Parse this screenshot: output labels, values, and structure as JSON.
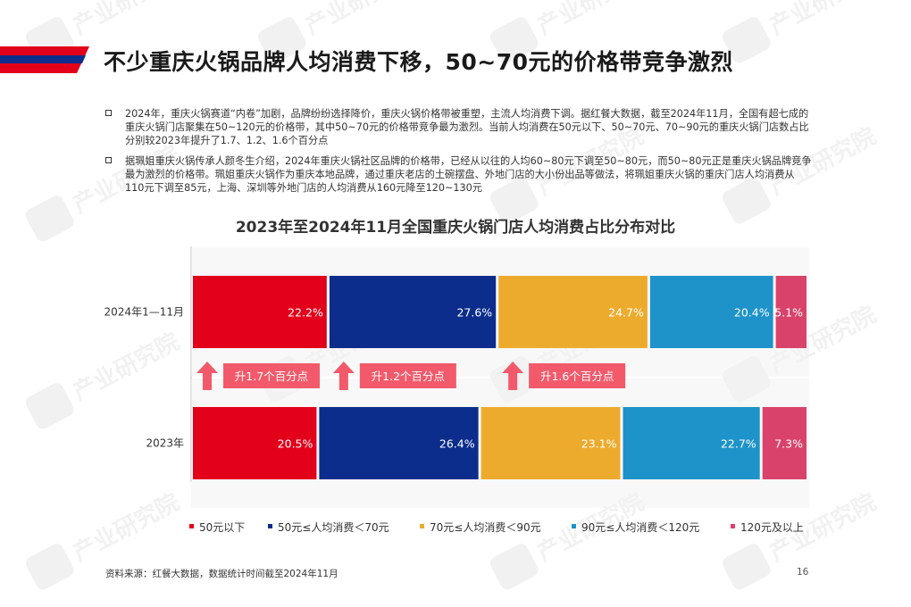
{
  "page": {
    "title": "不少重庆火锅品牌人均消费下移，50~70元的价格带竞争激烈",
    "bullets": [
      "2024年，重庆火锅赛道“内卷”加剧，品牌纷纷选择降价，重庆火锅价格带被重塑，主流人均消费下调。据红餐大数据，截至2024年11月，全国有超七成的重庆火锅门店聚集在50~120元的价格带，其中50~70元的价格带竞争最为激烈。当前人均消费在50元以下、50~70元、70~90元的重庆火锅门店数占比分别较2023年提升了1.7、1.2、1.6个百分点",
      "据珮姐重庆火锅传承人颜冬生介绍，2024年重庆火锅社区品牌的价格带，已经从以往的人均60~80元下调至50~80元，而50~80元正是重庆火锅品牌竞争最为激烈的价格带。珮姐重庆火锅作为重庆本地品牌，通过重庆老店的土碗摆盘、外地门店的大小份出品等做法，将珮姐重庆火锅的重庆门店人均消费从110元下调至85元，上海、深圳等外地门店的人均消费从160元降至120~130元"
    ],
    "source": "资料来源：红餐大数据，数据统计时间截至2024年11月",
    "page_number": "16",
    "watermark": "产业研究院",
    "watermark_logo": "红餐"
  },
  "chart_data": {
    "type": "bar",
    "orientation": "horizontal",
    "stacked": true,
    "normalized": true,
    "title": "2023年至2024年11月全国重庆火锅门店人均消费占比分布对比",
    "categories": [
      "2024年1—11月",
      "2023年"
    ],
    "series": [
      {
        "name": "50元以下",
        "color": "#e3001b",
        "values": [
          22.2,
          20.5
        ],
        "labels": [
          "22.2%",
          "20.5%"
        ]
      },
      {
        "name": "50元≤人均消费＜70元",
        "color": "#0c2d8c",
        "values": [
          27.6,
          26.4
        ],
        "labels": [
          "27.6%",
          "26.4%"
        ]
      },
      {
        "name": "70元≤人均消费＜90元",
        "color": "#edab2e",
        "values": [
          24.7,
          23.1
        ],
        "labels": [
          "24.7%",
          "23.1%"
        ]
      },
      {
        "name": "90元≤人均消费＜120元",
        "color": "#1d93c9",
        "values": [
          20.4,
          22.7
        ],
        "labels": [
          "20.4%",
          "22.7%"
        ]
      },
      {
        "name": "120元及以上",
        "color": "#d9436b",
        "values": [
          5.1,
          7.3
        ],
        "labels": [
          "5.1%",
          "7.3%"
        ]
      }
    ],
    "annotations": [
      "升1.7个百分点",
      "升1.2个百分点",
      "升1.6个百分点"
    ],
    "legend": "bottom",
    "grid": false,
    "arrow_color": "#f25a6b"
  }
}
